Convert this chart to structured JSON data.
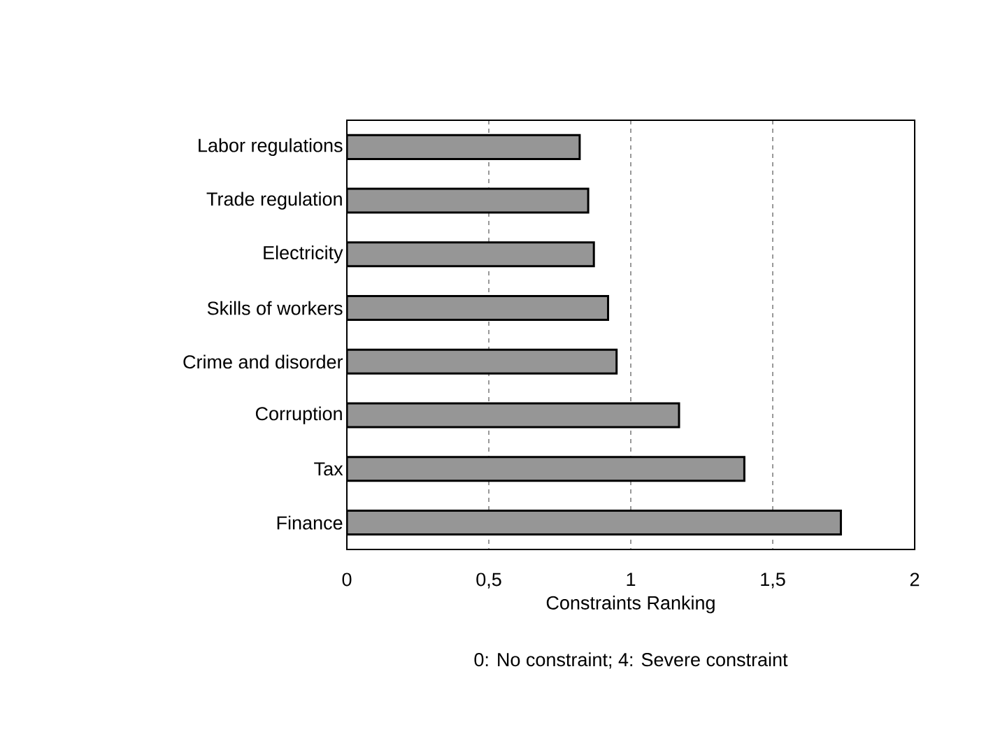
{
  "chart_data": {
    "type": "bar",
    "orientation": "horizontal",
    "categories": [
      "Labor regulations",
      "Trade regulation",
      "Electricity",
      "Skills of workers",
      "Crime and disorder",
      "Corruption",
      "Tax",
      "Finance"
    ],
    "values": [
      0.82,
      0.85,
      0.87,
      0.92,
      0.95,
      1.17,
      1.4,
      1.74
    ],
    "color": "#969696",
    "xlim": [
      0,
      2
    ],
    "xticks": [
      0,
      {
        "value": 0.5,
        "label": "0,5"
      },
      1,
      {
        "value": 1.5,
        "label": "1,5"
      },
      2
    ],
    "xlabel": "Constraints Ranking",
    "annotations": [
      "0: No constraint; 4: Severe constraint"
    ],
    "grid": "x"
  }
}
